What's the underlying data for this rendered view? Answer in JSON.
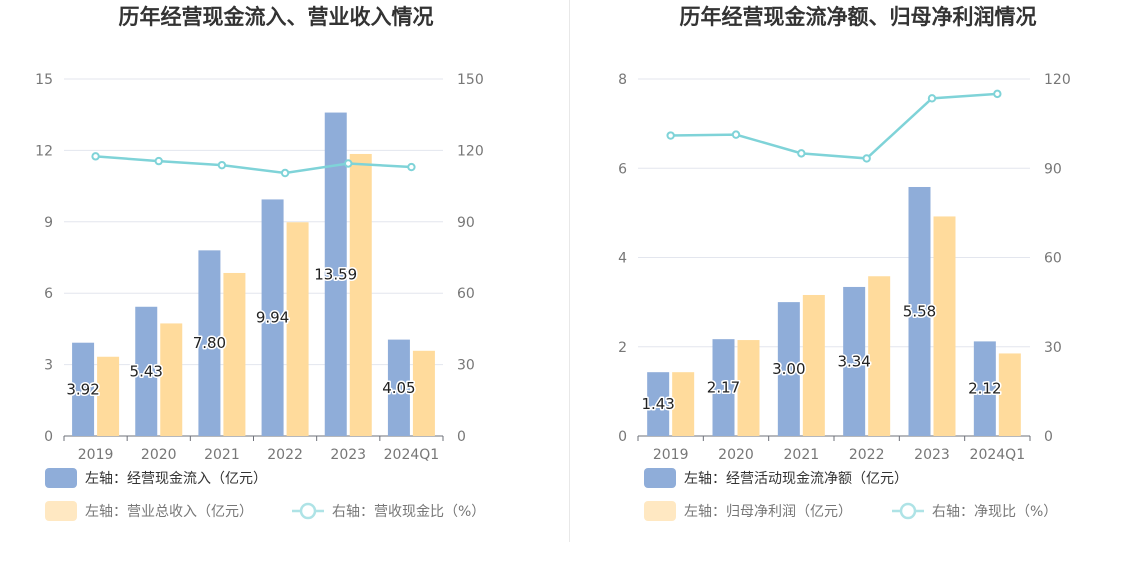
{
  "chart_data": [
    {
      "type": "bar",
      "title": "历年经营现金流入、营业收入情况",
      "categories": [
        "2019",
        "2020",
        "2021",
        "2022",
        "2023",
        "2024Q1"
      ],
      "y_left": {
        "ticks": [
          "0",
          "3",
          "6",
          "9",
          "12",
          "15"
        ],
        "range": [
          0,
          15
        ]
      },
      "y_right": {
        "ticks": [
          "0",
          "30",
          "60",
          "90",
          "120",
          "150"
        ],
        "range": [
          0,
          150
        ]
      },
      "series": [
        {
          "name": "左轴：经营现金流入（亿元）",
          "type": "bar",
          "axis": "left",
          "color": "#8fadd9",
          "values": [
            3.92,
            5.43,
            7.8,
            9.94,
            13.59,
            4.05
          ],
          "labels": [
            "3.92",
            "5.43",
            "7.80",
            "9.94",
            "13.59",
            "4.05"
          ]
        },
        {
          "name": "左轴：营业总收入（亿元）",
          "type": "bar",
          "axis": "left",
          "color": "#ffdb9c",
          "values": [
            3.33,
            4.73,
            6.85,
            8.98,
            11.85,
            3.58
          ]
        },
        {
          "name": "右轴：营收现金比（%）",
          "type": "line",
          "axis": "right",
          "color": "#7fd3d8",
          "values": [
            117.5,
            115.5,
            113.8,
            110.5,
            114.5,
            113.0
          ]
        }
      ]
    },
    {
      "type": "bar",
      "title": "历年经营现金流净额、归母净利润情况",
      "categories": [
        "2019",
        "2020",
        "2021",
        "2022",
        "2023",
        "2024Q1"
      ],
      "y_left": {
        "ticks": [
          "0",
          "2",
          "4",
          "6",
          "8"
        ],
        "range": [
          0,
          8
        ]
      },
      "y_right": {
        "ticks": [
          "0",
          "30",
          "60",
          "90",
          "120"
        ],
        "range": [
          0,
          120
        ]
      },
      "series": [
        {
          "name": "左轴：经营活动现金流净额（亿元）",
          "type": "bar",
          "axis": "left",
          "color": "#8fadd9",
          "values": [
            1.43,
            2.17,
            3.0,
            3.34,
            5.58,
            2.12
          ],
          "labels": [
            "1.43",
            "2.17",
            "3.00",
            "3.34",
            "5.58",
            "2.12"
          ]
        },
        {
          "name": "左轴：归母净利润（亿元）",
          "type": "bar",
          "axis": "left",
          "color": "#ffdb9c",
          "values": [
            1.43,
            2.15,
            3.16,
            3.58,
            4.92,
            1.85
          ]
        },
        {
          "name": "右轴：净现比（%）",
          "type": "line",
          "axis": "right",
          "color": "#7fd3d8",
          "values": [
            101.0,
            101.3,
            95.0,
            93.3,
            113.5,
            115.0
          ]
        }
      ]
    }
  ]
}
